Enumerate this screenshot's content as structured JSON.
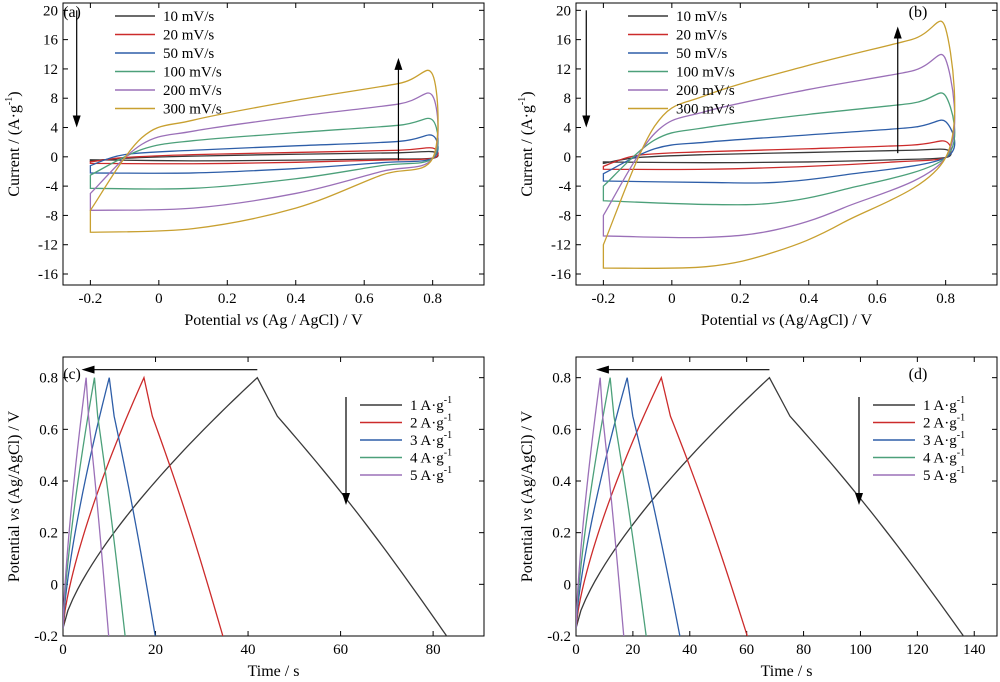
{
  "chart_data": [
    {
      "panel": "(a)",
      "type": "line",
      "subtype": "cyclic-voltammetry",
      "xlabel": "Potential vs (Ag / AgCl) / V",
      "xlabel_parts": [
        "Potential ",
        "vs",
        " (Ag / AgCl) / V"
      ],
      "ylabel": "Current / (A·g-1)",
      "ylabel_parts": [
        "Current / (A·g",
        "-1",
        ")"
      ],
      "xlim": [
        -0.28,
        0.95
      ],
      "ylim": [
        -17.5,
        21
      ],
      "xticks": [
        -0.2,
        0,
        0.2,
        0.4,
        0.6,
        0.8
      ],
      "yticks": [
        -16,
        -12,
        -8,
        -4,
        0,
        4,
        8,
        12,
        16,
        20
      ],
      "legend_position": "top-left",
      "arrows": [
        {
          "x": 0.7,
          "y1": -0.5,
          "y2": 13.5,
          "direction": "up"
        },
        {
          "x": -0.24,
          "y1": 20,
          "y2": 4,
          "direction": "down"
        }
      ],
      "series": [
        {
          "name": "10 mV/s",
          "color": "#3a3a3a",
          "upper": [
            [
              -0.2,
              -0.6
            ],
            [
              -0.1,
              -0.2
            ],
            [
              0.1,
              0.1
            ],
            [
              0.4,
              0.35
            ],
            [
              0.7,
              0.55
            ],
            [
              0.8,
              0.7
            ]
          ],
          "lower": [
            [
              -0.2,
              -0.4
            ],
            [
              0.1,
              -0.55
            ],
            [
              0.4,
              -0.45
            ],
            [
              0.65,
              -0.3
            ],
            [
              0.8,
              -0.2
            ]
          ]
        },
        {
          "name": "20 mV/s",
          "color": "#cc2b2b",
          "upper": [
            [
              -0.2,
              -0.7
            ],
            [
              -0.1,
              -0.1
            ],
            [
              0.1,
              0.3
            ],
            [
              0.4,
              0.6
            ],
            [
              0.7,
              0.9
            ],
            [
              0.8,
              1.2
            ]
          ],
          "lower": [
            [
              -0.2,
              -0.9
            ],
            [
              0.1,
              -0.95
            ],
            [
              0.4,
              -0.75
            ],
            [
              0.65,
              -0.45
            ],
            [
              0.8,
              -0.2
            ]
          ]
        },
        {
          "name": "50 mV/s",
          "color": "#2e5ea8",
          "upper": [
            [
              -0.2,
              -1.2
            ],
            [
              -0.1,
              0.3
            ],
            [
              0.1,
              0.9
            ],
            [
              0.4,
              1.5
            ],
            [
              0.7,
              2.1
            ],
            [
              0.8,
              2.9
            ]
          ],
          "lower": [
            [
              -0.2,
              -2.2
            ],
            [
              0.1,
              -2.2
            ],
            [
              0.4,
              -1.6
            ],
            [
              0.65,
              -0.8
            ],
            [
              0.8,
              -0.2
            ]
          ]
        },
        {
          "name": "100 mV/s",
          "color": "#4ca07a",
          "upper": [
            [
              -0.2,
              -2.5
            ],
            [
              -0.05,
              1.0
            ],
            [
              0.1,
              2.2
            ],
            [
              0.4,
              3.3
            ],
            [
              0.7,
              4.3
            ],
            [
              0.8,
              5.0
            ]
          ],
          "lower": [
            [
              -0.2,
              -4.3
            ],
            [
              0.1,
              -4.3
            ],
            [
              0.4,
              -3.0
            ],
            [
              0.65,
              -1.2
            ],
            [
              0.8,
              -0.2
            ]
          ]
        },
        {
          "name": "200 mV/s",
          "color": "#9b70b8",
          "upper": [
            [
              -0.2,
              -5.0
            ],
            [
              -0.05,
              1.7
            ],
            [
              0.1,
              3.5
            ],
            [
              0.4,
              5.5
            ],
            [
              0.7,
              7.2
            ],
            [
              0.8,
              8.3
            ]
          ],
          "lower": [
            [
              -0.2,
              -7.3
            ],
            [
              0.1,
              -7.0
            ],
            [
              0.4,
              -5.0
            ],
            [
              0.65,
              -2.0
            ],
            [
              0.8,
              -0.2
            ]
          ]
        },
        {
          "name": "300 mV/s",
          "color": "#c8a030",
          "upper": [
            [
              -0.2,
              -7.3
            ],
            [
              -0.05,
              2.6
            ],
            [
              0.1,
              5.0
            ],
            [
              0.4,
              7.7
            ],
            [
              0.7,
              10.0
            ],
            [
              0.8,
              11.2
            ]
          ],
          "lower": [
            [
              -0.2,
              -10.3
            ],
            [
              0.1,
              -9.8
            ],
            [
              0.4,
              -7.0
            ],
            [
              0.65,
              -2.5
            ],
            [
              0.8,
              -0.2
            ]
          ]
        }
      ]
    },
    {
      "panel": "(b)",
      "type": "line",
      "subtype": "cyclic-voltammetry",
      "xlabel": "Potential vs (Ag/AgCl) / V",
      "xlabel_parts": [
        "Potential ",
        "vs",
        " (Ag/AgCl) / V"
      ],
      "ylabel": "Current / (A·g-1)",
      "ylabel_parts": [
        "Current / (A·g",
        "-1",
        ")"
      ],
      "xlim": [
        -0.28,
        0.95
      ],
      "ylim": [
        -17.5,
        21
      ],
      "xticks": [
        -0.2,
        0,
        0.2,
        0.4,
        0.6,
        0.8
      ],
      "yticks": [
        -16,
        -12,
        -8,
        -4,
        0,
        4,
        8,
        12,
        16,
        20
      ],
      "legend_position": "top-left",
      "arrows": [
        {
          "x": 0.66,
          "y1": 0.5,
          "y2": 17.8,
          "direction": "up"
        },
        {
          "x": -0.25,
          "y1": 20,
          "y2": 4,
          "direction": "down"
        }
      ],
      "series": [
        {
          "name": "10 mV/s",
          "color": "#3a3a3a",
          "upper": [
            [
              -0.2,
              -0.9
            ],
            [
              -0.1,
              -0.1
            ],
            [
              0.1,
              0.3
            ],
            [
              0.4,
              0.6
            ],
            [
              0.7,
              0.9
            ],
            [
              0.8,
              1.0
            ]
          ],
          "lower": [
            [
              -0.2,
              -0.7
            ],
            [
              0.1,
              -0.8
            ],
            [
              0.4,
              -0.7
            ],
            [
              0.65,
              -0.4
            ],
            [
              0.8,
              -0.1
            ]
          ]
        },
        {
          "name": "20 mV/s",
          "color": "#cc2b2b",
          "upper": [
            [
              -0.2,
              -1.3
            ],
            [
              -0.1,
              0.2
            ],
            [
              0.1,
              0.7
            ],
            [
              0.4,
              1.1
            ],
            [
              0.7,
              1.6
            ],
            [
              0.8,
              2.1
            ]
          ],
          "lower": [
            [
              -0.2,
              -1.7
            ],
            [
              0.1,
              -1.7
            ],
            [
              0.4,
              -1.3
            ],
            [
              0.65,
              -0.7
            ],
            [
              0.8,
              -0.1
            ]
          ]
        },
        {
          "name": "50 mV/s",
          "color": "#2e5ea8",
          "upper": [
            [
              -0.2,
              -2.3
            ],
            [
              -0.05,
              1.1
            ],
            [
              0.1,
              2.0
            ],
            [
              0.4,
              3.0
            ],
            [
              0.7,
              4.0
            ],
            [
              0.8,
              4.8
            ]
          ],
          "lower": [
            [
              -0.2,
              -3.3
            ],
            [
              0.1,
              -3.5
            ],
            [
              0.3,
              -3.5
            ],
            [
              0.5,
              -2.5
            ],
            [
              0.8,
              -0.1
            ]
          ]
        },
        {
          "name": "100 mV/s",
          "color": "#4ca07a",
          "upper": [
            [
              -0.2,
              -4.0
            ],
            [
              -0.05,
              2.3
            ],
            [
              0.1,
              4.0
            ],
            [
              0.4,
              5.8
            ],
            [
              0.7,
              7.3
            ],
            [
              0.8,
              8.3
            ]
          ],
          "lower": [
            [
              -0.2,
              -6.0
            ],
            [
              0.1,
              -6.5
            ],
            [
              0.3,
              -6.3
            ],
            [
              0.5,
              -4.5
            ],
            [
              0.8,
              -0.1
            ]
          ]
        },
        {
          "name": "200 mV/s",
          "color": "#9b70b8",
          "upper": [
            [
              -0.2,
              -8.0
            ],
            [
              -0.05,
              3.2
            ],
            [
              0.1,
              6.2
            ],
            [
              0.4,
              9.2
            ],
            [
              0.7,
              11.7
            ],
            [
              0.8,
              13.3
            ]
          ],
          "lower": [
            [
              -0.2,
              -10.8
            ],
            [
              0.1,
              -11.0
            ],
            [
              0.3,
              -10.0
            ],
            [
              0.5,
              -7.0
            ],
            [
              0.8,
              -0.1
            ]
          ]
        },
        {
          "name": "300 mV/s",
          "color": "#c8a030",
          "upper": [
            [
              -0.2,
              -12.0
            ],
            [
              -0.05,
              4.2
            ],
            [
              0.1,
              8.4
            ],
            [
              0.4,
              12.5
            ],
            [
              0.7,
              16.0
            ],
            [
              0.8,
              17.5
            ]
          ],
          "lower": [
            [
              -0.2,
              -15.2
            ],
            [
              0.1,
              -15.0
            ],
            [
              0.3,
              -13.0
            ],
            [
              0.5,
              -9.0
            ],
            [
              0.8,
              -0.1
            ]
          ]
        }
      ]
    },
    {
      "panel": "(c)",
      "type": "line",
      "subtype": "galvanostatic-charge-discharge",
      "xlabel": "Time / s",
      "ylabel": "Potential vs (Ag/AgCl) / V",
      "ylabel_parts": [
        "Potential ",
        "vs",
        " (Ag/AgCl) / V"
      ],
      "xlim": [
        0,
        91
      ],
      "ylim": [
        -0.2,
        0.88
      ],
      "xticks": [
        0,
        20,
        40,
        60,
        80
      ],
      "yticks": [
        -0.2,
        0,
        0.2,
        0.4,
        0.6,
        0.8
      ],
      "ytick_labels": [
        "-0.2",
        "0",
        "0.2",
        "0.4",
        "0.6",
        "0.8"
      ],
      "legend_position": "right",
      "arrows": [
        {
          "x1": 42,
          "x2": 4,
          "y": 0.8,
          "direction": "left"
        }
      ],
      "legend_arrow": "down",
      "series": [
        {
          "name": "1 A·g-1",
          "name_parts": [
            "1 A·g",
            "-1"
          ],
          "color": "#3a3a3a",
          "charge_time": 42,
          "end_time": 84
        },
        {
          "name": "2 A·g-1",
          "name_parts": [
            "2 A·g",
            "-1"
          ],
          "color": "#cc2b2b",
          "charge_time": 17.5,
          "end_time": 35
        },
        {
          "name": "3 A·g-1",
          "name_parts": [
            "3 A·g",
            "-1"
          ],
          "color": "#2e5ea8",
          "charge_time": 10,
          "end_time": 20.2
        },
        {
          "name": "4 A·g-1",
          "name_parts": [
            "4 A·g",
            "-1"
          ],
          "color": "#4ca07a",
          "charge_time": 6.8,
          "end_time": 13.6
        },
        {
          "name": "5 A·g-1",
          "name_parts": [
            "5 A·g",
            "-1"
          ],
          "color": "#9b70b8",
          "charge_time": 5,
          "end_time": 10
        }
      ]
    },
    {
      "panel": "(d)",
      "type": "line",
      "subtype": "galvanostatic-charge-discharge",
      "xlabel": "Time / s",
      "ylabel": "Potential vs (Ag/AgCl) / V",
      "ylabel_parts": [
        "Potential ",
        "vs",
        " (Ag/AgCl) / V"
      ],
      "xlim": [
        0,
        148
      ],
      "ylim": [
        -0.2,
        0.88
      ],
      "xticks": [
        0,
        20,
        40,
        60,
        80,
        100,
        120,
        140
      ],
      "yticks": [
        -0.2,
        0,
        0.2,
        0.4,
        0.6,
        0.8
      ],
      "ytick_labels": [
        "-0.2",
        "0",
        "0.2",
        "0.4",
        "0.6",
        "0.8"
      ],
      "legend_position": "right",
      "arrows": [
        {
          "x1": 68,
          "x2": 7,
          "y": 0.8,
          "direction": "left"
        }
      ],
      "legend_arrow": "down",
      "series": [
        {
          "name": "1 A·g-1",
          "name_parts": [
            "1 A·g",
            "-1"
          ],
          "color": "#3a3a3a",
          "charge_time": 68,
          "end_time": 138
        },
        {
          "name": "2 A·g-1",
          "name_parts": [
            "2 A·g",
            "-1"
          ],
          "color": "#cc2b2b",
          "charge_time": 30,
          "end_time": 61
        },
        {
          "name": "3 A·g-1",
          "name_parts": [
            "3 A·g",
            "-1"
          ],
          "color": "#2e5ea8",
          "charge_time": 18,
          "end_time": 37
        },
        {
          "name": "4 A·g-1",
          "name_parts": [
            "4 A·g",
            "-1"
          ],
          "color": "#4ca07a",
          "charge_time": 12,
          "end_time": 25
        },
        {
          "name": "5 A·g-1",
          "name_parts": [
            "5 A·g",
            "-1"
          ],
          "color": "#9b70b8",
          "charge_time": 8.5,
          "end_time": 17
        }
      ]
    }
  ]
}
